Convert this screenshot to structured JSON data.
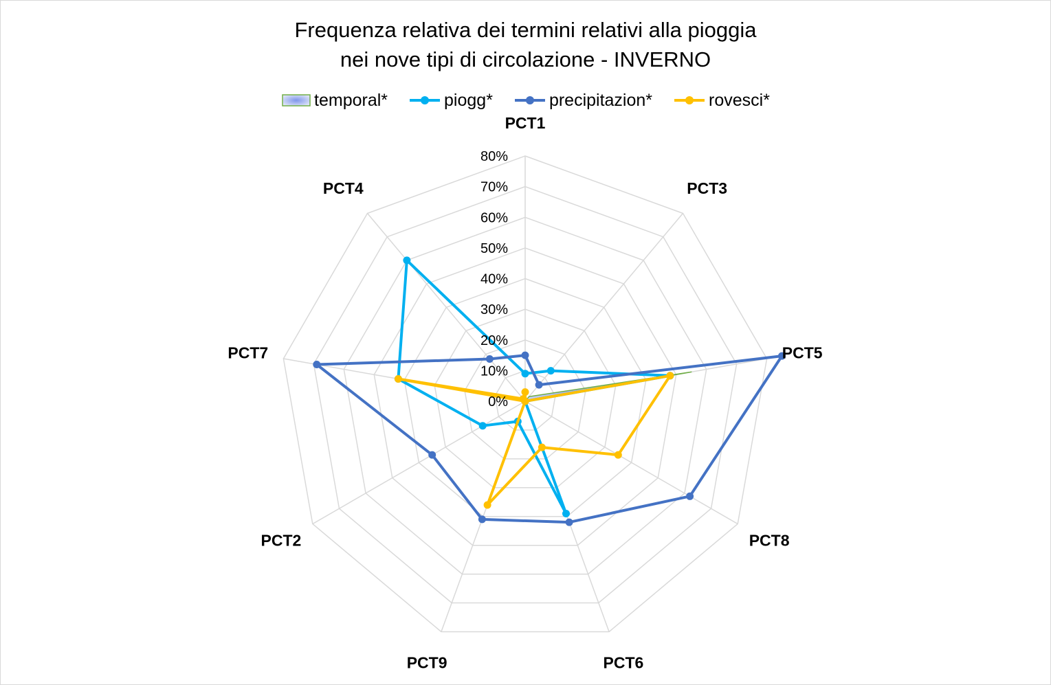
{
  "chart_data": {
    "type": "radar",
    "title_lines": [
      "Frequenza relativa dei termini relativi alla pioggia",
      "nei nove tipi di circolazione - INVERNO"
    ],
    "categories": [
      "PCT1",
      "PCT3",
      "PCT5",
      "PCT8",
      "PCT6",
      "PCT9",
      "PCT2",
      "PCT7",
      "PCT4"
    ],
    "ticks": [
      "0%",
      "10%",
      "20%",
      "30%",
      "40%",
      "50%",
      "60%",
      "70%",
      "80%"
    ],
    "rmax": 80,
    "grid": true,
    "legend_position": "top",
    "series": [
      {
        "name": "temporal*",
        "kind": "area",
        "values": [
          0,
          2,
          55,
          0,
          9,
          0,
          0,
          0,
          0
        ],
        "fill": "#a9b8ee",
        "stroke": "#70ad47"
      },
      {
        "name": "piogg*",
        "kind": "line",
        "values": [
          9,
          13,
          48,
          0,
          39,
          7,
          16,
          42,
          60
        ],
        "color": "#00b0f0"
      },
      {
        "name": "precipitazion*",
        "kind": "line",
        "values": [
          15,
          7,
          85,
          62,
          42,
          41,
          35,
          69,
          18
        ],
        "color": "#4472c4"
      },
      {
        "name": "rovesci*",
        "kind": "line",
        "values": [
          3,
          0,
          48,
          35,
          16,
          36,
          0,
          42,
          1
        ],
        "color": "#ffc000"
      }
    ]
  }
}
